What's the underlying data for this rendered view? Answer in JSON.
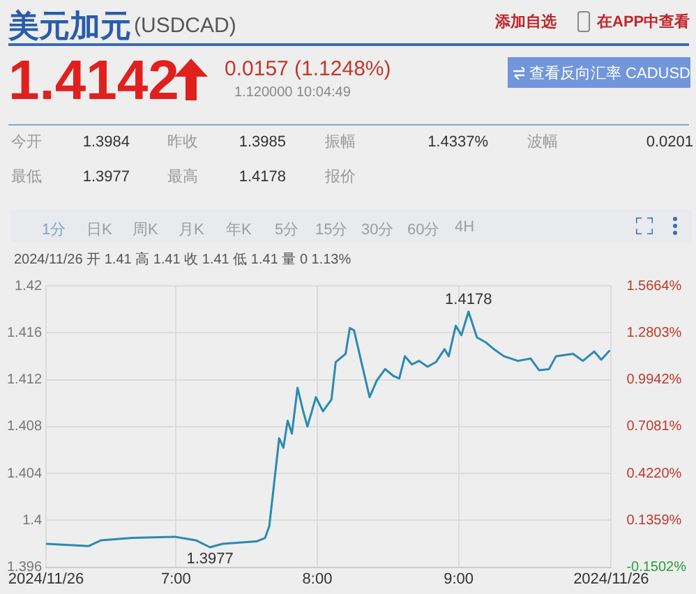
{
  "chart_data": {
    "type": "line",
    "title": "美元加元",
    "subtitle": "(USDCAD)",
    "annotations": [
      "添加自选",
      "在APP中查看",
      "1.4142",
      "0.0157 (1.1248%)",
      "1.120000 10:04:49",
      "查看反向汇率 CADUSD",
      "今开",
      "1.3984",
      "昨收",
      "1.3985",
      "振幅",
      "1.4337%",
      "波幅",
      "0.0201",
      "最低",
      "1.3977",
      "最高",
      "1.4178",
      "报价",
      "1分",
      "日K",
      "周K",
      "月K",
      "年K",
      "5分",
      "15分",
      "30分",
      "60分",
      "4H",
      "2024/11/26 开 1.41 高 1.41 收 1.41 低 1.41 量 0 1.13%",
      {
        "text": "1.3977",
        "x": 7.24,
        "y": 1.3977
      },
      {
        "text": "1.4178",
        "x": 9.07,
        "y": 1.4178
      }
    ],
    "series": [
      {
        "color": "#2a8ab0",
        "x": [
          6.08,
          6.38,
          6.47,
          6.69,
          6.99,
          7.14,
          7.24,
          7.33,
          7.57,
          7.63,
          7.66,
          7.73,
          7.76,
          7.79,
          7.82,
          7.86,
          7.9,
          7.93,
          7.99,
          8.04,
          8.1,
          8.13,
          8.2,
          8.23,
          8.26,
          8.31,
          8.37,
          8.42,
          8.48,
          8.54,
          8.58,
          8.62,
          8.67,
          8.72,
          8.78,
          8.84,
          8.9,
          8.93,
          8.98,
          9.02,
          9.07,
          9.13,
          9.19,
          9.25,
          9.32,
          9.42,
          9.51,
          9.57,
          9.64,
          9.69,
          9.81,
          9.88,
          9.96,
          10.01,
          10.07
        ],
        "values": [
          1.398,
          1.3978,
          1.3983,
          1.3985,
          1.3986,
          1.3983,
          1.3977,
          1.398,
          1.3982,
          1.3985,
          1.3995,
          1.407,
          1.4062,
          1.4085,
          1.4074,
          1.4113,
          1.4093,
          1.408,
          1.4105,
          1.4093,
          1.4103,
          1.4135,
          1.4142,
          1.4164,
          1.4162,
          1.4136,
          1.4105,
          1.4119,
          1.4129,
          1.4123,
          1.4121,
          1.414,
          1.4133,
          1.4136,
          1.4131,
          1.4135,
          1.4146,
          1.414,
          1.4166,
          1.4158,
          1.4178,
          1.4156,
          1.4152,
          1.4146,
          1.414,
          1.4136,
          1.4138,
          1.4128,
          1.4129,
          1.414,
          1.4142,
          1.4136,
          1.4144,
          1.4137,
          1.4145
        ]
      }
    ],
    "xlim": [
      6.08,
      10.08
    ],
    "xticks": [
      {
        "value": 6.08,
        "label": "2024/11/26"
      },
      {
        "value": 7,
        "label": "7:00"
      },
      {
        "value": 8,
        "label": "8:00"
      },
      {
        "value": 9,
        "label": "9:00"
      },
      {
        "value": 10.08,
        "label": "2024/11/26"
      }
    ],
    "ylim": [
      1.396,
      1.42
    ],
    "yticks": [
      1.396,
      1.4,
      1.404,
      1.408,
      1.412,
      1.416,
      1.42
    ],
    "y2lim": [
      -0.1502,
      1.5664
    ],
    "y2ticks": [
      {
        "value": -0.1502,
        "label": "-0.1502%"
      },
      {
        "value": 0.1359,
        "label": "0.1359%"
      },
      {
        "value": 0.422,
        "label": "0.4220%"
      },
      {
        "value": 0.7081,
        "label": "0.7081%"
      },
      {
        "value": 0.9942,
        "label": "0.9942%"
      },
      {
        "value": 1.2803,
        "label": "1.2803%"
      },
      {
        "value": 1.5664,
        "label": "1.5664%"
      }
    ],
    "grid": true,
    "legend": false,
    "marker": "none",
    "line_style": "solid"
  }
}
